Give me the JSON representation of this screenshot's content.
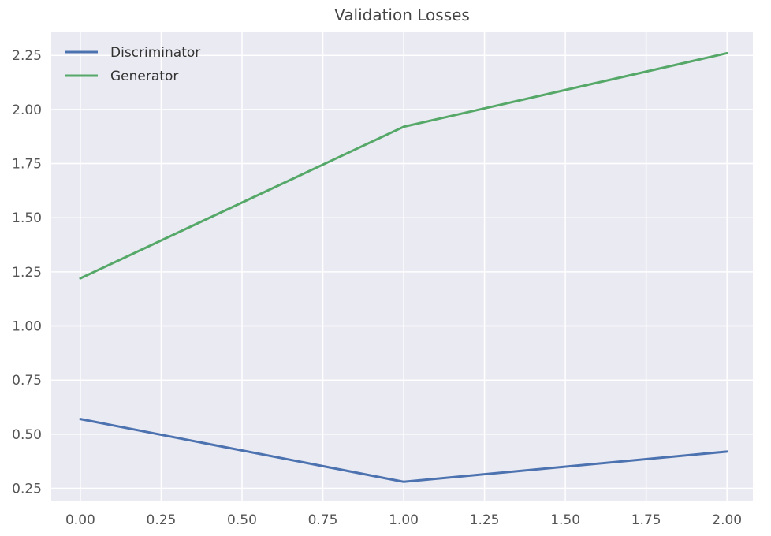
{
  "chart_data": {
    "type": "line",
    "title": "Validation Losses",
    "xlabel": "",
    "ylabel": "",
    "x": [
      0,
      1,
      2
    ],
    "xlim": [
      -0.09,
      2.08
    ],
    "ylim": [
      0.19,
      2.36
    ],
    "xticks": [
      "0.00",
      "0.25",
      "0.50",
      "0.75",
      "1.00",
      "1.25",
      "1.50",
      "1.75",
      "2.00"
    ],
    "yticks": [
      "0.25",
      "0.50",
      "0.75",
      "1.00",
      "1.25",
      "1.50",
      "1.75",
      "2.00",
      "2.25"
    ],
    "grid": true,
    "legend_position": "top-left",
    "series": [
      {
        "name": "Discriminator",
        "values": [
          0.57,
          0.28,
          0.42
        ],
        "color": "#4c72b0"
      },
      {
        "name": "Generator",
        "values": [
          1.22,
          1.92,
          2.26
        ],
        "color": "#55a868"
      }
    ]
  },
  "colors": {
    "plot_background": "#eaeaf2",
    "grid": "#ffffff",
    "discriminator": "#4c72b0",
    "generator": "#55a868"
  }
}
